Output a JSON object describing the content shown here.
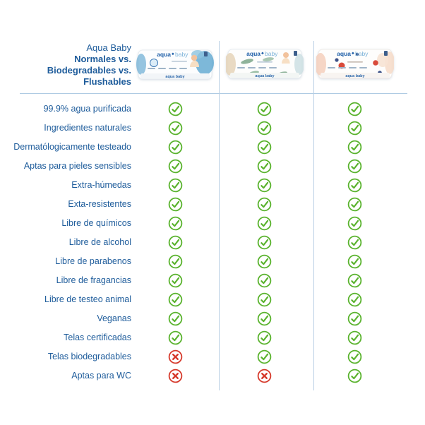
{
  "header": {
    "title_lines": [
      "Aqua Baby",
      "Normales vs.",
      "Biodegradables vs.",
      "Flushables"
    ]
  },
  "brand": {
    "aqua": "aqua",
    "baby": "baby",
    "full": "aqua baby"
  },
  "products": [
    {
      "id": "normales",
      "logo": "aqua baby"
    },
    {
      "id": "biodegradables",
      "logo": "aqua baby"
    },
    {
      "id": "flushables",
      "logo": "aqua baby"
    }
  ],
  "rows": [
    {
      "label": "99.9% agua purificada",
      "marks": [
        "check",
        "check",
        "check"
      ]
    },
    {
      "label": "Ingredientes naturales",
      "marks": [
        "check",
        "check",
        "check"
      ]
    },
    {
      "label": "Dermatólogicamente testeado",
      "marks": [
        "check",
        "check",
        "check"
      ]
    },
    {
      "label": "Aptas para pieles sensibles",
      "marks": [
        "check",
        "check",
        "check"
      ]
    },
    {
      "label": "Extra-húmedas",
      "marks": [
        "check",
        "check",
        "check"
      ]
    },
    {
      "label": "Exta-resistentes",
      "marks": [
        "check",
        "check",
        "check"
      ]
    },
    {
      "label": "Libre de químicos",
      "marks": [
        "check",
        "check",
        "check"
      ]
    },
    {
      "label": "Libre de alcohol",
      "marks": [
        "check",
        "check",
        "check"
      ]
    },
    {
      "label": "Libre de parabenos",
      "marks": [
        "check",
        "check",
        "check"
      ]
    },
    {
      "label": "Libre de fragancias",
      "marks": [
        "check",
        "check",
        "check"
      ]
    },
    {
      "label": "Libre de testeo animal",
      "marks": [
        "check",
        "check",
        "check"
      ]
    },
    {
      "label": "Veganas",
      "marks": [
        "check",
        "check",
        "check"
      ]
    },
    {
      "label": "Telas certificadas",
      "marks": [
        "check",
        "check",
        "check"
      ]
    },
    {
      "label": "Telas biodegradables",
      "marks": [
        "cross",
        "check",
        "check"
      ]
    },
    {
      "label": "Aptas para WC",
      "marks": [
        "cross",
        "cross",
        "check"
      ]
    }
  ],
  "colors": {
    "text_blue": "#1e5c9b",
    "check_green": "#5ab32e",
    "cross_red": "#d63a2c",
    "line_blue": "#aecbe3"
  },
  "icons": {
    "check": "check-icon",
    "cross": "cross-icon"
  },
  "chart_data": {
    "type": "table",
    "title": "Aqua Baby Normales vs. Biodegradables vs. Flushables",
    "columns": [
      "Normales",
      "Biodegradables",
      "Flushables"
    ],
    "rows": [
      {
        "feature": "99.9% agua purificada",
        "values": [
          true,
          true,
          true
        ]
      },
      {
        "feature": "Ingredientes naturales",
        "values": [
          true,
          true,
          true
        ]
      },
      {
        "feature": "Dermatólogicamente testeado",
        "values": [
          true,
          true,
          true
        ]
      },
      {
        "feature": "Aptas para pieles sensibles",
        "values": [
          true,
          true,
          true
        ]
      },
      {
        "feature": "Extra-húmedas",
        "values": [
          true,
          true,
          true
        ]
      },
      {
        "feature": "Exta-resistentes",
        "values": [
          true,
          true,
          true
        ]
      },
      {
        "feature": "Libre de químicos",
        "values": [
          true,
          true,
          true
        ]
      },
      {
        "feature": "Libre de alcohol",
        "values": [
          true,
          true,
          true
        ]
      },
      {
        "feature": "Libre de parabenos",
        "values": [
          true,
          true,
          true
        ]
      },
      {
        "feature": "Libre de fragancias",
        "values": [
          true,
          true,
          true
        ]
      },
      {
        "feature": "Libre de testeo animal",
        "values": [
          true,
          true,
          true
        ]
      },
      {
        "feature": "Veganas",
        "values": [
          true,
          true,
          true
        ]
      },
      {
        "feature": "Telas certificadas",
        "values": [
          true,
          true,
          true
        ]
      },
      {
        "feature": "Telas biodegradables",
        "values": [
          false,
          true,
          true
        ]
      },
      {
        "feature": "Aptas para WC",
        "values": [
          false,
          false,
          true
        ]
      }
    ]
  }
}
